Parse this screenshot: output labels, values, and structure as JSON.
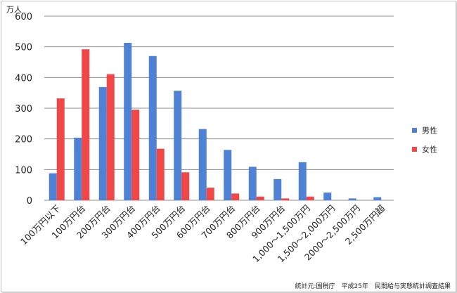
{
  "chart_data": {
    "type": "bar",
    "unit_label": "万人",
    "categories": [
      "100万円以下",
      "100万円台",
      "200万円台",
      "300万円台",
      "400万円台",
      "500万円台",
      "600万円台",
      "700万円台",
      "800万円台",
      "900万円台",
      "1,000～1,500万円",
      "1,500～2,000万円",
      "2000～2,500万円",
      "2,500万円超"
    ],
    "series": [
      {
        "name": "男性",
        "color": "#4f81d4",
        "values": [
          88,
          204,
          369,
          513,
          470,
          357,
          232,
          164,
          109,
          69,
          124,
          25,
          6,
          10
        ]
      },
      {
        "name": "女性",
        "color": "#f04848",
        "values": [
          332,
          492,
          411,
          295,
          168,
          91,
          41,
          22,
          12,
          6,
          12,
          0,
          0,
          0
        ]
      }
    ],
    "ylim": [
      0,
      600
    ],
    "yticks": [
      0,
      100,
      200,
      300,
      400,
      500,
      600
    ],
    "grid": true,
    "legend_position": "right",
    "source": "統計元:国税庁　平成25年　民間給与実態統計調査結果"
  }
}
